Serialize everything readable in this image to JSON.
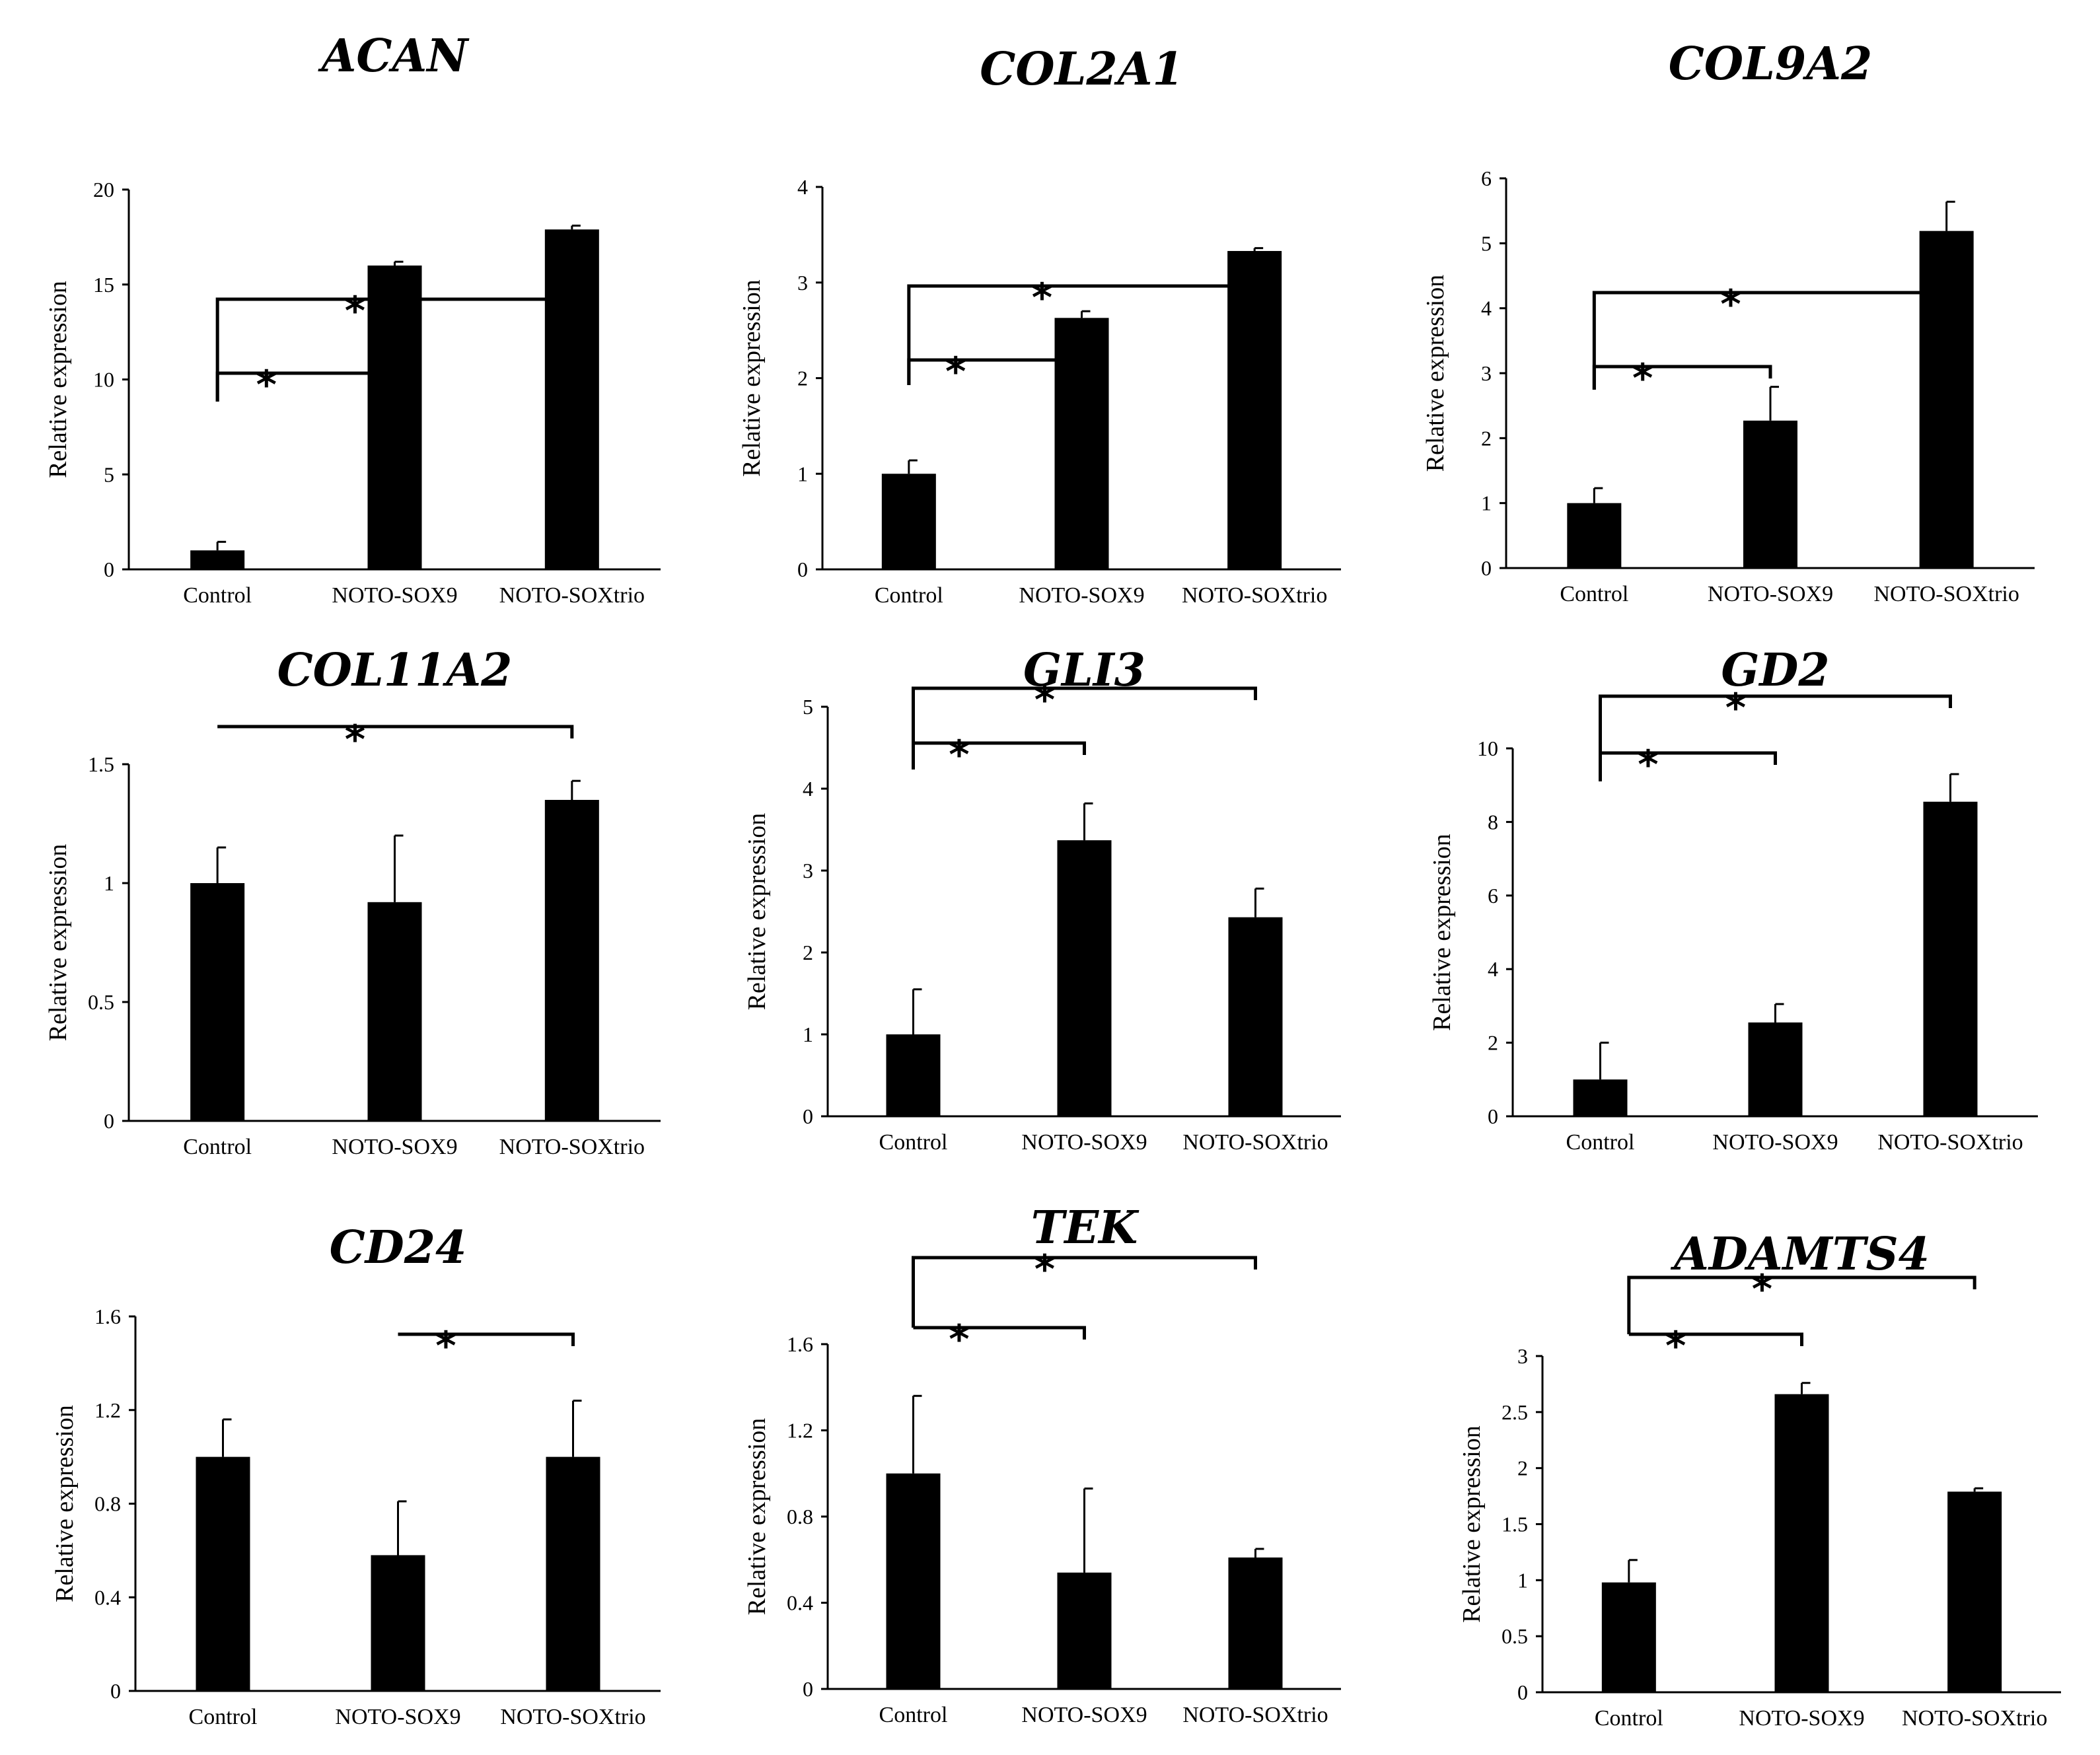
{
  "figure_title": "",
  "chart_data": [
    {
      "type": "bar",
      "title": "ACAN",
      "ylabel": "Relative expression",
      "categories": [
        "Control",
        "NOTO-SOX9",
        "NOTO-SOXtrio"
      ],
      "values": [
        1.0,
        16.0,
        17.9
      ],
      "errors": [
        0.45,
        0.2,
        0.2
      ],
      "ylim": [
        0,
        20
      ],
      "yticks": [
        "0",
        "5",
        "10",
        "15",
        "20"
      ],
      "significance": [
        {
          "from": 0,
          "to": 1,
          "label": "*"
        },
        {
          "from": 0,
          "to": 2,
          "label": "*"
        }
      ]
    },
    {
      "type": "bar",
      "title": "COL2A1",
      "ylabel": "Relative expression",
      "categories": [
        "Control",
        "NOTO-SOX9",
        "NOTO-SOXtrio"
      ],
      "values": [
        1.0,
        2.63,
        3.33
      ],
      "errors": [
        0.14,
        0.07,
        0.03
      ],
      "ylim": [
        0,
        4
      ],
      "yticks": [
        "0",
        "1",
        "2",
        "3",
        "4"
      ],
      "significance": [
        {
          "from": 0,
          "to": 1,
          "label": "*"
        },
        {
          "from": 0,
          "to": 2,
          "label": "*"
        }
      ]
    },
    {
      "type": "bar",
      "title": "COL9A2",
      "ylabel": "Relative expression",
      "categories": [
        "Control",
        "NOTO-SOX9",
        "NOTO-SOXtrio"
      ],
      "values": [
        1.0,
        2.27,
        5.19
      ],
      "errors": [
        0.23,
        0.52,
        0.45
      ],
      "ylim": [
        0,
        6
      ],
      "yticks": [
        "0",
        "1",
        "2",
        "3",
        "4",
        "5",
        "6"
      ],
      "significance": [
        {
          "from": 0,
          "to": 1,
          "label": "*"
        },
        {
          "from": 0,
          "to": 2,
          "label": "*"
        }
      ]
    },
    {
      "type": "bar",
      "title": "COL11A2",
      "ylabel": "Relative expression",
      "categories": [
        "Control",
        "NOTO-SOX9",
        "NOTO-SOXtrio"
      ],
      "values": [
        1.0,
        0.92,
        1.35
      ],
      "errors": [
        0.15,
        0.28,
        0.08
      ],
      "ylim": [
        0,
        1.5
      ],
      "yticks": [
        "0",
        "0.5",
        "1",
        "1.5"
      ],
      "significance": [
        {
          "from": 0,
          "to": 2,
          "label": "*"
        }
      ]
    },
    {
      "type": "bar",
      "title": "GLI3",
      "ylabel": "Relative expression",
      "categories": [
        "Control",
        "NOTO-SOX9",
        "NOTO-SOXtrio"
      ],
      "values": [
        1.0,
        3.37,
        2.43
      ],
      "errors": [
        0.55,
        0.45,
        0.35
      ],
      "ylim": [
        0,
        5
      ],
      "yticks": [
        "0",
        "1",
        "2",
        "3",
        "4",
        "5"
      ],
      "significance": [
        {
          "from": 0,
          "to": 1,
          "label": "*"
        },
        {
          "from": 0,
          "to": 2,
          "label": "*"
        }
      ]
    },
    {
      "type": "bar",
      "title": "GD2",
      "ylabel": "Relative expression",
      "categories": [
        "Control",
        "NOTO-SOX9",
        "NOTO-SOXtrio"
      ],
      "values": [
        1.0,
        2.55,
        8.55
      ],
      "errors": [
        1.0,
        0.5,
        0.75
      ],
      "ylim": [
        0,
        10
      ],
      "yticks": [
        "0",
        "2",
        "4",
        "6",
        "8",
        "10"
      ],
      "significance": [
        {
          "from": 0,
          "to": 1,
          "label": "*"
        },
        {
          "from": 0,
          "to": 2,
          "label": "*"
        }
      ]
    },
    {
      "type": "bar",
      "title": "CD24",
      "ylabel": "Relative expression",
      "categories": [
        "Control",
        "NOTO-SOX9",
        "NOTO-SOXtrio"
      ],
      "values": [
        1.0,
        0.58,
        1.0
      ],
      "errors": [
        0.16,
        0.23,
        0.24
      ],
      "ylim": [
        0,
        1.6
      ],
      "yticks": [
        "0",
        "0.4",
        "0.8",
        "1.2",
        "1.6"
      ],
      "significance": [
        {
          "from": 1,
          "to": 2,
          "label": "*"
        }
      ]
    },
    {
      "type": "bar",
      "title": "TEK",
      "ylabel": "Relative expression",
      "categories": [
        "Control",
        "NOTO-SOX9",
        "NOTO-SOXtrio"
      ],
      "values": [
        1.0,
        0.54,
        0.61
      ],
      "errors": [
        0.36,
        0.39,
        0.04
      ],
      "ylim": [
        0,
        1.6
      ],
      "yticks": [
        "0",
        "0.4",
        "0.8",
        "1.2",
        "1.6"
      ],
      "significance": [
        {
          "from": 0,
          "to": 1,
          "label": "*"
        },
        {
          "from": 0,
          "to": 2,
          "label": "*"
        }
      ]
    },
    {
      "type": "bar",
      "title": "ADAMTS4",
      "ylabel": "Relative expression",
      "categories": [
        "Control",
        "NOTO-SOX9",
        "NOTO-SOXtrio"
      ],
      "values": [
        0.98,
        2.66,
        1.79
      ],
      "errors": [
        0.2,
        0.1,
        0.03
      ],
      "ylim": [
        0,
        3
      ],
      "yticks": [
        "0",
        "0.5",
        "1",
        "1.5",
        "2",
        "2.5",
        "3"
      ],
      "significance": [
        {
          "from": 0,
          "to": 1,
          "label": "*"
        },
        {
          "from": 0,
          "to": 2,
          "label": "*"
        }
      ]
    }
  ]
}
